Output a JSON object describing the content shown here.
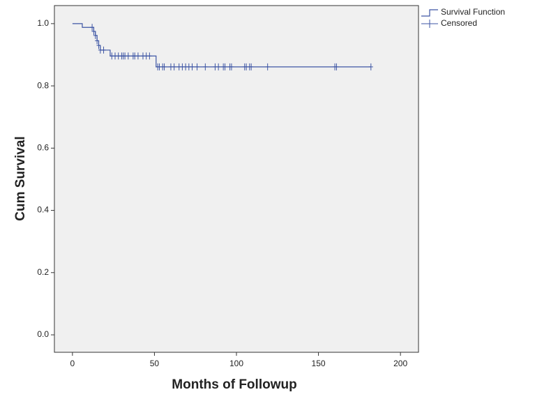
{
  "chart_data": {
    "type": "step",
    "x_label": "Months of Followup",
    "y_label": "Cum Survival",
    "xlim": [
      -11,
      211
    ],
    "ylim": [
      -0.056,
      1.058
    ],
    "xticks": [
      0,
      50,
      100,
      150,
      200
    ],
    "yticks": [
      {
        "value": 0,
        "label": "0.0"
      },
      0.2,
      0.4,
      0.6,
      0.8,
      {
        "value": 1,
        "label": "1.0"
      }
    ],
    "plot_background": "#f0f0f0",
    "series": [
      {
        "name": "Survival Function",
        "color": "#3d55a4",
        "mode": "step",
        "x": [
          0,
          6,
          13,
          14,
          15,
          16,
          17,
          23,
          51,
          182
        ],
        "values": [
          1.0,
          0.988,
          0.975,
          0.962,
          0.945,
          0.93,
          0.915,
          0.896,
          0.861,
          0.861
        ]
      },
      {
        "name": "Censored",
        "color": "#3d55a4",
        "mode": "markers",
        "x": [
          12,
          13,
          14,
          15,
          16,
          17,
          19,
          24,
          26,
          28,
          30,
          31,
          32,
          34,
          37,
          38,
          40,
          43,
          45,
          47,
          52,
          53,
          55,
          56,
          60,
          62,
          65,
          67,
          69,
          71,
          73,
          76,
          81,
          87,
          89,
          92,
          93,
          96,
          97,
          105,
          106,
          108,
          109,
          119,
          160,
          161,
          182
        ],
        "values": [
          0.988,
          0.975,
          0.962,
          0.945,
          0.93,
          0.915,
          0.915,
          0.896,
          0.896,
          0.896,
          0.896,
          0.896,
          0.896,
          0.896,
          0.896,
          0.896,
          0.896,
          0.896,
          0.896,
          0.896,
          0.861,
          0.861,
          0.861,
          0.861,
          0.861,
          0.861,
          0.861,
          0.861,
          0.861,
          0.861,
          0.861,
          0.861,
          0.861,
          0.861,
          0.861,
          0.861,
          0.861,
          0.861,
          0.861,
          0.861,
          0.861,
          0.861,
          0.861,
          0.861,
          0.861,
          0.861,
          0.861
        ]
      }
    ]
  }
}
